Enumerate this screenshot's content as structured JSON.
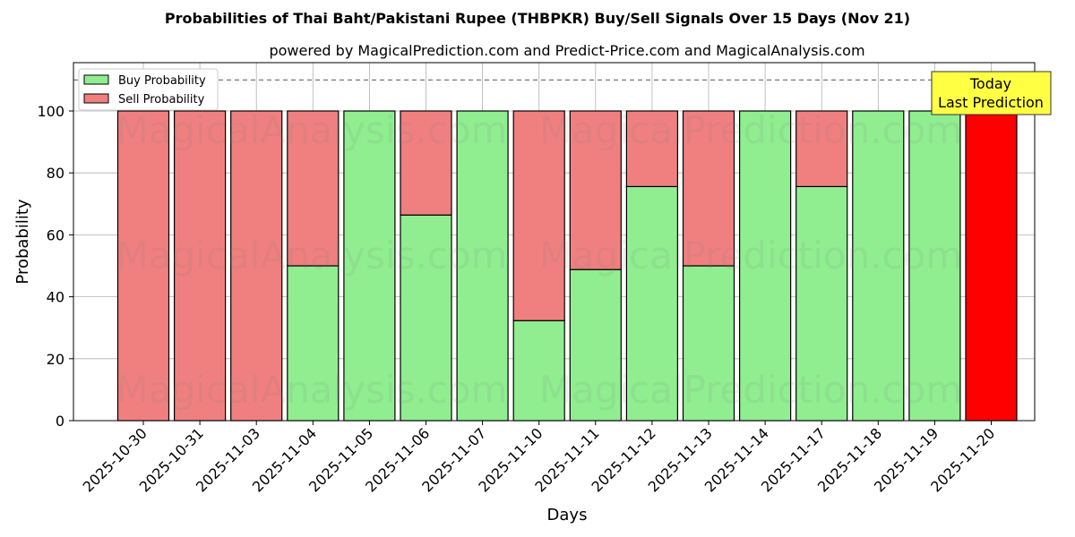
{
  "chart_data": {
    "type": "bar",
    "stacked": true,
    "title": "Probabilities of Thai Baht/Pakistani Rupee (THBPKR) Buy/Sell Signals Over 15 Days (Nov 21)",
    "subtitle": "powered by MagicalPrediction.com and Predict-Price.com and MagicalAnalysis.com",
    "xlabel": "Days",
    "ylabel": "Probability",
    "ylim": [
      0,
      115
    ],
    "yticks": [
      0,
      20,
      40,
      60,
      80,
      100
    ],
    "reference_line": 110,
    "grid": true,
    "legend_placement": "top-left",
    "categories": [
      "2025-10-30",
      "2025-10-31",
      "2025-11-03",
      "2025-11-04",
      "2025-11-05",
      "2025-11-06",
      "2025-11-07",
      "2025-11-10",
      "2025-11-11",
      "2025-11-12",
      "2025-11-13",
      "2025-11-14",
      "2025-11-17",
      "2025-11-18",
      "2025-11-19",
      "2025-11-20"
    ],
    "series": [
      {
        "name": "Buy Probability",
        "color": "#90ee90",
        "values": [
          0,
          0,
          0,
          50,
          100,
          66.4,
          100,
          32.3,
          48.8,
          75.6,
          50,
          100,
          75.6,
          100,
          100,
          0
        ]
      },
      {
        "name": "Sell Probability",
        "color": "#f08080",
        "values": [
          100,
          100,
          100,
          50,
          0,
          33.6,
          0,
          67.7,
          51.2,
          24.4,
          50,
          0,
          24.4,
          0,
          0,
          100
        ]
      }
    ],
    "highlight_color": "#ff0000",
    "annotation": {
      "line1": "Today",
      "line2": "Last Prediction",
      "color": "#ffff44"
    },
    "watermarks": [
      "MagicalAnalysis.com",
      "MagicalPrediction.com"
    ]
  }
}
